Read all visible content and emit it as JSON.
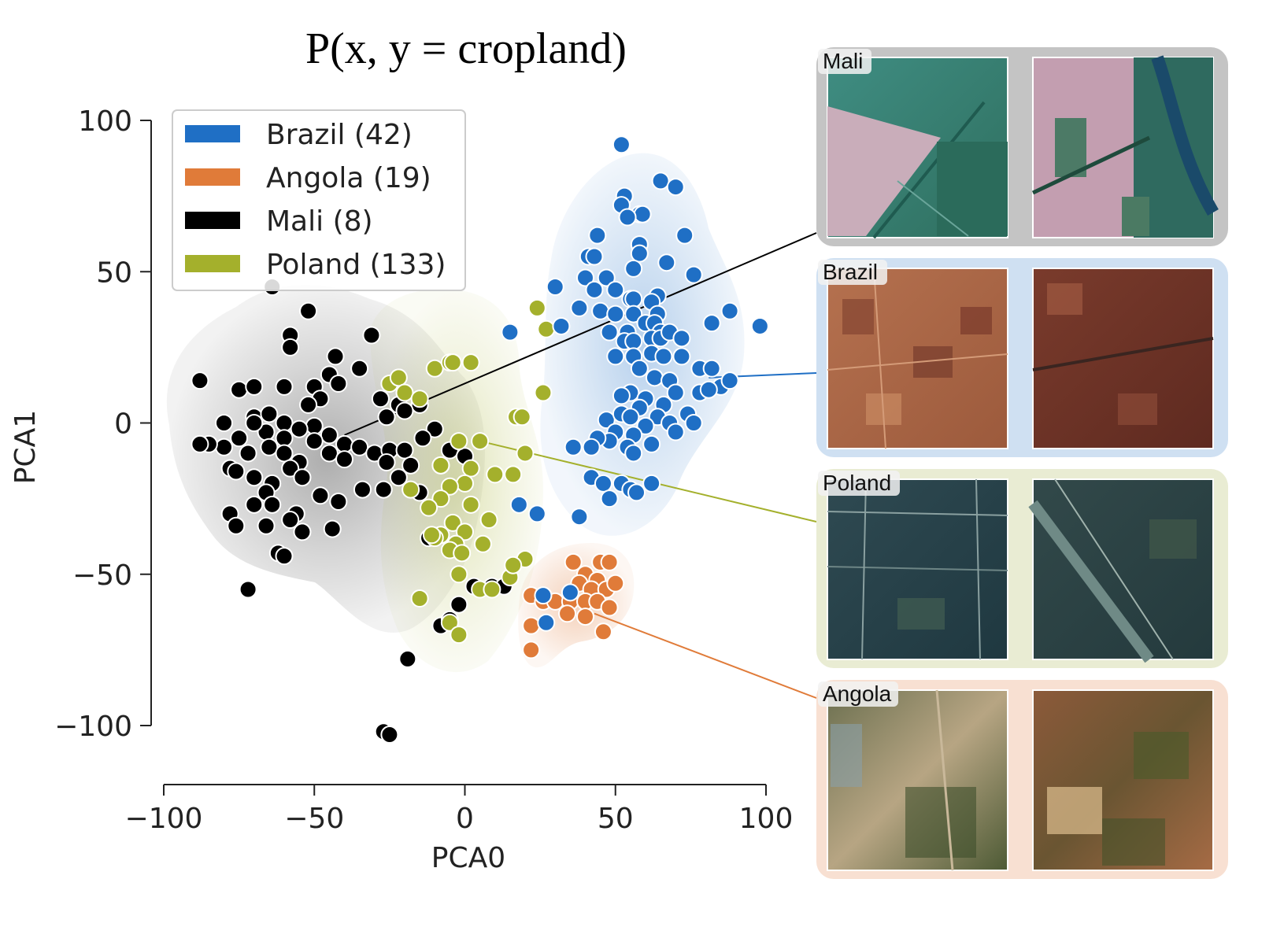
{
  "chart_data": {
    "type": "scatter",
    "title": "P(x, y = cropland)",
    "xlabel": "PCA0",
    "ylabel": "PCA1",
    "xlim": [
      -100,
      100
    ],
    "ylim": [
      -120,
      100
    ],
    "xticks": [
      "−100",
      "−50",
      "0",
      "50",
      "100"
    ],
    "yticks": [
      "100",
      "50",
      "0",
      "−50",
      "−100"
    ],
    "xtick_values": [
      -100,
      -50,
      0,
      50,
      100
    ],
    "ytick_values": [
      100,
      50,
      0,
      -50,
      -100
    ],
    "legend_position": "top-left",
    "series": [
      {
        "name": "Brazil (42)",
        "color": "#1f6fc5",
        "points": [
          [
            52,
            92
          ],
          [
            53,
            75
          ],
          [
            52,
            72
          ],
          [
            58,
            69
          ],
          [
            59,
            69
          ],
          [
            54,
            68
          ],
          [
            65,
            80
          ],
          [
            70,
            78
          ],
          [
            44,
            62
          ],
          [
            41,
            55
          ],
          [
            43,
            55
          ],
          [
            58,
            59
          ],
          [
            58,
            56
          ],
          [
            56,
            51
          ],
          [
            73,
            62
          ],
          [
            67,
            53
          ],
          [
            76,
            49
          ],
          [
            40,
            48
          ],
          [
            47,
            48
          ],
          [
            43,
            44
          ],
          [
            50,
            44
          ],
          [
            30,
            45
          ],
          [
            55,
            41
          ],
          [
            56,
            41
          ],
          [
            64,
            42
          ],
          [
            62,
            40
          ],
          [
            45,
            37
          ],
          [
            50,
            36
          ],
          [
            56,
            36
          ],
          [
            64,
            36
          ],
          [
            60,
            33
          ],
          [
            63,
            33
          ],
          [
            65,
            30
          ],
          [
            48,
            30
          ],
          [
            54,
            30
          ],
          [
            62,
            28
          ],
          [
            65,
            28
          ],
          [
            68,
            30
          ],
          [
            72,
            28
          ],
          [
            82,
            33
          ],
          [
            88,
            37
          ],
          [
            98,
            32
          ],
          [
            15,
            30
          ],
          [
            32,
            32
          ],
          [
            38,
            38
          ],
          [
            53,
            27
          ],
          [
            56,
            27
          ],
          [
            50,
            22
          ],
          [
            56,
            22
          ],
          [
            62,
            23
          ],
          [
            66,
            22
          ],
          [
            72,
            22
          ],
          [
            78,
            18
          ],
          [
            82,
            18
          ],
          [
            58,
            18
          ],
          [
            63,
            15
          ],
          [
            68,
            14
          ],
          [
            85,
            12
          ],
          [
            88,
            14
          ],
          [
            78,
            10
          ],
          [
            70,
            10
          ],
          [
            55,
            10
          ],
          [
            52,
            9
          ],
          [
            60,
            8
          ],
          [
            66,
            6
          ],
          [
            81,
            11
          ],
          [
            74,
            3
          ],
          [
            47,
            1
          ],
          [
            52,
            3
          ],
          [
            58,
            5
          ],
          [
            55,
            2
          ],
          [
            64,
            2
          ],
          [
            68,
            0
          ],
          [
            76,
            0
          ],
          [
            60,
            -1
          ],
          [
            70,
            -3
          ],
          [
            50,
            -3
          ],
          [
            56,
            -4
          ],
          [
            48,
            -6
          ],
          [
            44,
            -5
          ],
          [
            42,
            -8
          ],
          [
            36,
            -8
          ],
          [
            62,
            -7
          ],
          [
            54,
            -8
          ],
          [
            56,
            -10
          ],
          [
            42,
            -18
          ],
          [
            46,
            -20
          ],
          [
            52,
            -20
          ],
          [
            55,
            -22
          ],
          [
            62,
            -20
          ],
          [
            57,
            -23
          ],
          [
            48,
            -25
          ],
          [
            38,
            -31
          ],
          [
            24,
            -30
          ],
          [
            18,
            -27
          ],
          [
            35,
            -56
          ],
          [
            27,
            -66
          ],
          [
            26,
            -57
          ]
        ]
      },
      {
        "name": "Angola (19)",
        "color": "#e07b39",
        "points": [
          [
            36,
            -46
          ],
          [
            45,
            -46
          ],
          [
            48,
            -46
          ],
          [
            40,
            -50
          ],
          [
            44,
            -52
          ],
          [
            38,
            -53
          ],
          [
            42,
            -55
          ],
          [
            47,
            -55
          ],
          [
            50,
            -53
          ],
          [
            22,
            -57
          ],
          [
            26,
            -59
          ],
          [
            30,
            -59
          ],
          [
            35,
            -59
          ],
          [
            40,
            -59
          ],
          [
            44,
            -59
          ],
          [
            34,
            -63
          ],
          [
            40,
            -64
          ],
          [
            46,
            -69
          ],
          [
            22,
            -67
          ],
          [
            22,
            -75
          ],
          [
            48,
            -61
          ]
        ]
      },
      {
        "name": "Mali (8)",
        "color": "#000000",
        "points": [
          [
            -64,
            45
          ],
          [
            -52,
            37
          ],
          [
            -58,
            29
          ],
          [
            -58,
            25
          ],
          [
            -43,
            22
          ],
          [
            -31,
            29
          ],
          [
            -45,
            16
          ],
          [
            -35,
            18
          ],
          [
            -88,
            14
          ],
          [
            -75,
            11
          ],
          [
            -70,
            12
          ],
          [
            -60,
            12
          ],
          [
            -50,
            12
          ],
          [
            -48,
            8
          ],
          [
            -42,
            13
          ],
          [
            -28,
            8
          ],
          [
            -22,
            6
          ],
          [
            -15,
            6
          ],
          [
            -26,
            2
          ],
          [
            -20,
            4
          ],
          [
            -52,
            6
          ],
          [
            -80,
            0
          ],
          [
            -70,
            2
          ],
          [
            -65,
            3
          ],
          [
            -60,
            0
          ],
          [
            -50,
            -1
          ],
          [
            -55,
            -2
          ],
          [
            -45,
            -4
          ],
          [
            -40,
            -7
          ],
          [
            -60,
            -5
          ],
          [
            -66,
            -3
          ],
          [
            -70,
            0
          ],
          [
            -75,
            -5
          ],
          [
            -80,
            -8
          ],
          [
            -72,
            -10
          ],
          [
            -65,
            -8
          ],
          [
            -60,
            -10
          ],
          [
            -55,
            -13
          ],
          [
            -50,
            -6
          ],
          [
            -45,
            -10
          ],
          [
            -40,
            -12
          ],
          [
            -35,
            -8
          ],
          [
            -30,
            -10
          ],
          [
            -25,
            -9
          ],
          [
            -20,
            -9
          ],
          [
            -26,
            -13
          ],
          [
            -22,
            -18
          ],
          [
            -78,
            -15
          ],
          [
            -85,
            -7
          ],
          [
            -88,
            -7
          ],
          [
            -76,
            -16
          ],
          [
            -70,
            -18
          ],
          [
            -64,
            -20
          ],
          [
            -66,
            -23
          ],
          [
            -58,
            -15
          ],
          [
            -54,
            -18
          ],
          [
            -48,
            -24
          ],
          [
            -42,
            -26
          ],
          [
            -56,
            -30
          ],
          [
            -64,
            -27
          ],
          [
            -70,
            -27
          ],
          [
            -78,
            -30
          ],
          [
            -76,
            -34
          ],
          [
            -66,
            -34
          ],
          [
            -58,
            -32
          ],
          [
            -54,
            -36
          ],
          [
            -44,
            -35
          ],
          [
            -62,
            -43
          ],
          [
            -60,
            -44
          ],
          [
            -72,
            -55
          ],
          [
            -34,
            -22
          ],
          [
            -27,
            -22
          ],
          [
            -10,
            -2
          ],
          [
            -14,
            -5
          ],
          [
            -5,
            -9
          ],
          [
            0,
            -11
          ],
          [
            -8,
            -14
          ],
          [
            -18,
            -14
          ],
          [
            -15,
            -23
          ],
          [
            -3,
            -40
          ],
          [
            3,
            -54
          ],
          [
            9,
            -54
          ],
          [
            13,
            -54
          ],
          [
            -2,
            -60
          ],
          [
            -8,
            -67
          ],
          [
            -19,
            -78
          ],
          [
            -27,
            -102
          ],
          [
            -25,
            -103
          ],
          [
            -5,
            -65
          ],
          [
            -12,
            -38
          ]
        ]
      },
      {
        "name": "Poland (133)",
        "color": "#a4b02c",
        "points": [
          [
            -25,
            13
          ],
          [
            -22,
            15
          ],
          [
            -10,
            18
          ],
          [
            -5,
            20
          ],
          [
            -4,
            20
          ],
          [
            2,
            20
          ],
          [
            -20,
            10
          ],
          [
            -15,
            8
          ],
          [
            26,
            10
          ],
          [
            24,
            38
          ],
          [
            27,
            31
          ],
          [
            17,
            2
          ],
          [
            19,
            2
          ],
          [
            20,
            -10
          ],
          [
            5,
            -6
          ],
          [
            -2,
            -6
          ],
          [
            -8,
            -14
          ],
          [
            2,
            -15
          ],
          [
            10,
            -17
          ],
          [
            16,
            -17
          ],
          [
            0,
            -20
          ],
          [
            -5,
            -21
          ],
          [
            -8,
            -25
          ],
          [
            2,
            -27
          ],
          [
            -18,
            -22
          ],
          [
            -12,
            -28
          ],
          [
            -4,
            -33
          ],
          [
            8,
            -32
          ],
          [
            0,
            -36
          ],
          [
            -3,
            -40
          ],
          [
            -5,
            -42
          ],
          [
            -8,
            -37
          ],
          [
            -10,
            -38
          ],
          [
            -11,
            -37
          ],
          [
            -1,
            -43
          ],
          [
            6,
            -40
          ],
          [
            -2,
            -50
          ],
          [
            5,
            -55
          ],
          [
            9,
            -55
          ],
          [
            15,
            -51
          ],
          [
            20,
            -45
          ],
          [
            16,
            -47
          ],
          [
            -5,
            -66
          ],
          [
            -2,
            -70
          ],
          [
            -15,
            -58
          ]
        ]
      }
    ],
    "panels": [
      {
        "label": "Mali",
        "series": "Mali (8)",
        "bg": "#c4c4c4",
        "point": [
          -40,
          -4
        ]
      },
      {
        "label": "Brazil",
        "series": "Brazil (42)",
        "bg": "#cfe0f2",
        "point": [
          81,
          15
        ]
      },
      {
        "label": "Poland",
        "series": "Poland (133)",
        "bg": "#e9ecd3",
        "point": [
          5,
          -6
        ]
      },
      {
        "label": "Angola",
        "series": "Angola (19)",
        "bg": "#f8e0d2",
        "point": [
          43,
          -63
        ]
      }
    ]
  }
}
